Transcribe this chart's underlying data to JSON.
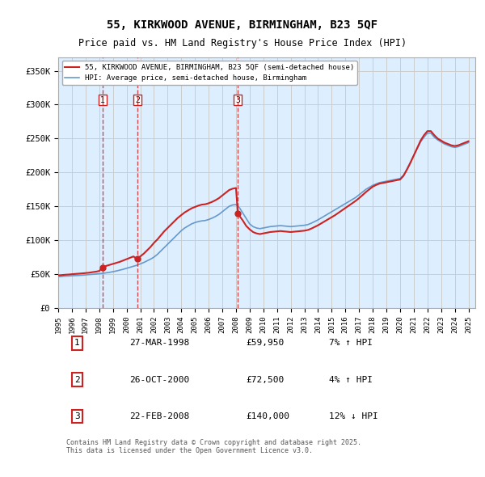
{
  "title_line1": "55, KIRKWOOD AVENUE, BIRMINGHAM, B23 5QF",
  "title_line2": "Price paid vs. HM Land Registry's House Price Index (HPI)",
  "ylabel_ticks": [
    "£0",
    "£50K",
    "£100K",
    "£150K",
    "£200K",
    "£250K",
    "£300K",
    "£350K"
  ],
  "ytick_values": [
    0,
    50000,
    100000,
    150000,
    200000,
    250000,
    300000,
    350000
  ],
  "ylim": [
    0,
    370000
  ],
  "xlim_start": 1995.0,
  "xlim_end": 2025.5,
  "sale_dates": [
    1998.23,
    2000.81,
    2008.14
  ],
  "sale_prices": [
    59950,
    72500,
    140000
  ],
  "sale_labels": [
    "1",
    "2",
    "3"
  ],
  "legend_line1": "55, KIRKWOOD AVENUE, BIRMINGHAM, B23 5QF (semi-detached house)",
  "legend_line2": "HPI: Average price, semi-detached house, Birmingham",
  "table_rows": [
    [
      "1",
      "27-MAR-1998",
      "£59,950",
      "7% ↑ HPI"
    ],
    [
      "2",
      "26-OCT-2000",
      "£72,500",
      "4% ↑ HPI"
    ],
    [
      "3",
      "22-FEB-2008",
      "£140,000",
      "12% ↓ HPI"
    ]
  ],
  "footer": "Contains HM Land Registry data © Crown copyright and database right 2025.\nThis data is licensed under the Open Government Licence v3.0.",
  "hpi_color": "#6699cc",
  "price_color": "#cc2222",
  "vline_color": "#cc2222",
  "bg_color": "#ddeeff",
  "grid_color": "#cccccc",
  "hpi_data_x": [
    1995.0,
    1995.25,
    1995.5,
    1995.75,
    1996.0,
    1996.25,
    1996.5,
    1996.75,
    1997.0,
    1997.25,
    1997.5,
    1997.75,
    1998.0,
    1998.25,
    1998.5,
    1998.75,
    1999.0,
    1999.25,
    1999.5,
    1999.75,
    2000.0,
    2000.25,
    2000.5,
    2000.75,
    2001.0,
    2001.25,
    2001.5,
    2001.75,
    2002.0,
    2002.25,
    2002.5,
    2002.75,
    2003.0,
    2003.25,
    2003.5,
    2003.75,
    2004.0,
    2004.25,
    2004.5,
    2004.75,
    2005.0,
    2005.25,
    2005.5,
    2005.75,
    2006.0,
    2006.25,
    2006.5,
    2006.75,
    2007.0,
    2007.25,
    2007.5,
    2007.75,
    2008.0,
    2008.25,
    2008.5,
    2008.75,
    2009.0,
    2009.25,
    2009.5,
    2009.75,
    2010.0,
    2010.25,
    2010.5,
    2010.75,
    2011.0,
    2011.25,
    2011.5,
    2011.75,
    2012.0,
    2012.25,
    2012.5,
    2012.75,
    2013.0,
    2013.25,
    2013.5,
    2013.75,
    2014.0,
    2014.25,
    2014.5,
    2014.75,
    2015.0,
    2015.25,
    2015.5,
    2015.75,
    2016.0,
    2016.25,
    2016.5,
    2016.75,
    2017.0,
    2017.25,
    2017.5,
    2017.75,
    2018.0,
    2018.25,
    2018.5,
    2018.75,
    2019.0,
    2019.25,
    2019.5,
    2019.75,
    2020.0,
    2020.25,
    2020.5,
    2020.75,
    2021.0,
    2021.25,
    2021.5,
    2021.75,
    2022.0,
    2022.25,
    2022.5,
    2022.75,
    2023.0,
    2023.25,
    2023.5,
    2023.75,
    2024.0,
    2024.25,
    2024.5,
    2024.75,
    2025.0
  ],
  "hpi_data_y": [
    46000,
    46500,
    47000,
    47200,
    47500,
    47800,
    48000,
    48300,
    48800,
    49200,
    49600,
    50000,
    50500,
    51000,
    51800,
    52500,
    53500,
    54500,
    55800,
    57000,
    58500,
    60000,
    61500,
    63000,
    65000,
    67000,
    69500,
    72000,
    75000,
    79000,
    84000,
    89000,
    94000,
    99000,
    104000,
    109000,
    114000,
    118000,
    121000,
    124000,
    126000,
    127500,
    128500,
    129000,
    130500,
    132500,
    135000,
    138000,
    142000,
    146000,
    150000,
    152000,
    152500,
    148000,
    140000,
    132000,
    124000,
    120000,
    118000,
    117000,
    118000,
    119000,
    120000,
    120500,
    121000,
    121500,
    121000,
    120500,
    120000,
    120500,
    121000,
    121500,
    122000,
    123000,
    125000,
    127500,
    130000,
    133000,
    136000,
    139000,
    142000,
    145000,
    148000,
    151000,
    154000,
    157000,
    160000,
    163000,
    167000,
    171000,
    175000,
    178000,
    181000,
    183000,
    185000,
    186000,
    187000,
    188000,
    189000,
    190000,
    191000,
    196000,
    205000,
    215000,
    225000,
    235000,
    245000,
    252000,
    258000,
    258000,
    252000,
    248000,
    245000,
    242000,
    240000,
    238000,
    237000,
    238000,
    240000,
    242000,
    244000
  ],
  "price_data_x": [
    1995.0,
    1995.25,
    1995.5,
    1995.75,
    1996.0,
    1996.25,
    1996.5,
    1996.75,
    1997.0,
    1997.25,
    1997.5,
    1997.75,
    1998.0,
    1998.25,
    1998.5,
    1998.75,
    1999.0,
    1999.25,
    1999.5,
    1999.75,
    2000.0,
    2000.25,
    2000.5,
    2000.75,
    2001.0,
    2001.25,
    2001.5,
    2001.75,
    2002.0,
    2002.25,
    2002.5,
    2002.75,
    2003.0,
    2003.25,
    2003.5,
    2003.75,
    2004.0,
    2004.25,
    2004.5,
    2004.75,
    2005.0,
    2005.25,
    2005.5,
    2005.75,
    2006.0,
    2006.25,
    2006.5,
    2006.75,
    2007.0,
    2007.25,
    2007.5,
    2007.75,
    2008.0,
    2008.14,
    2008.25,
    2008.5,
    2008.75,
    2009.0,
    2009.25,
    2009.5,
    2009.75,
    2010.0,
    2010.25,
    2010.5,
    2010.75,
    2011.0,
    2011.25,
    2011.5,
    2011.75,
    2012.0,
    2012.25,
    2012.5,
    2012.75,
    2013.0,
    2013.25,
    2013.5,
    2013.75,
    2014.0,
    2014.25,
    2014.5,
    2014.75,
    2015.0,
    2015.25,
    2015.5,
    2015.75,
    2016.0,
    2016.25,
    2016.5,
    2016.75,
    2017.0,
    2017.25,
    2017.5,
    2017.75,
    2018.0,
    2018.25,
    2018.5,
    2018.75,
    2019.0,
    2019.25,
    2019.5,
    2019.75,
    2020.0,
    2020.25,
    2020.5,
    2020.75,
    2021.0,
    2021.25,
    2021.5,
    2021.75,
    2022.0,
    2022.25,
    2022.5,
    2022.75,
    2023.0,
    2023.25,
    2023.5,
    2023.75,
    2024.0,
    2024.25,
    2024.5,
    2024.75,
    2025.0
  ],
  "price_data_y": [
    48000,
    48500,
    49000,
    49300,
    49800,
    50200,
    50600,
    51000,
    51500,
    52000,
    52800,
    53500,
    54500,
    59950,
    62000,
    63500,
    65000,
    66500,
    68000,
    70000,
    72000,
    74000,
    76000,
    72500,
    76000,
    80000,
    85000,
    90000,
    96000,
    101000,
    107000,
    113000,
    118000,
    123000,
    128000,
    133000,
    137000,
    141000,
    144000,
    147000,
    149000,
    151000,
    152500,
    153000,
    154500,
    156500,
    159000,
    162000,
    166000,
    170000,
    174000,
    176000,
    177000,
    140000,
    136000,
    129000,
    121000,
    116000,
    112000,
    110000,
    109000,
    110000,
    111000,
    112000,
    112500,
    113000,
    113500,
    113000,
    112500,
    112000,
    112500,
    113000,
    113500,
    114000,
    115000,
    117000,
    119500,
    122000,
    125000,
    128000,
    131000,
    134000,
    137000,
    140500,
    144000,
    147500,
    151000,
    154500,
    158000,
    162000,
    166500,
    171000,
    175000,
    179000,
    181500,
    183500,
    184500,
    185500,
    186500,
    187500,
    188500,
    189500,
    195000,
    204000,
    214000,
    225000,
    236000,
    247000,
    255000,
    261000,
    261000,
    255000,
    250000,
    247000,
    244000,
    242000,
    240000,
    239000,
    240000,
    242000,
    244000,
    246000
  ]
}
